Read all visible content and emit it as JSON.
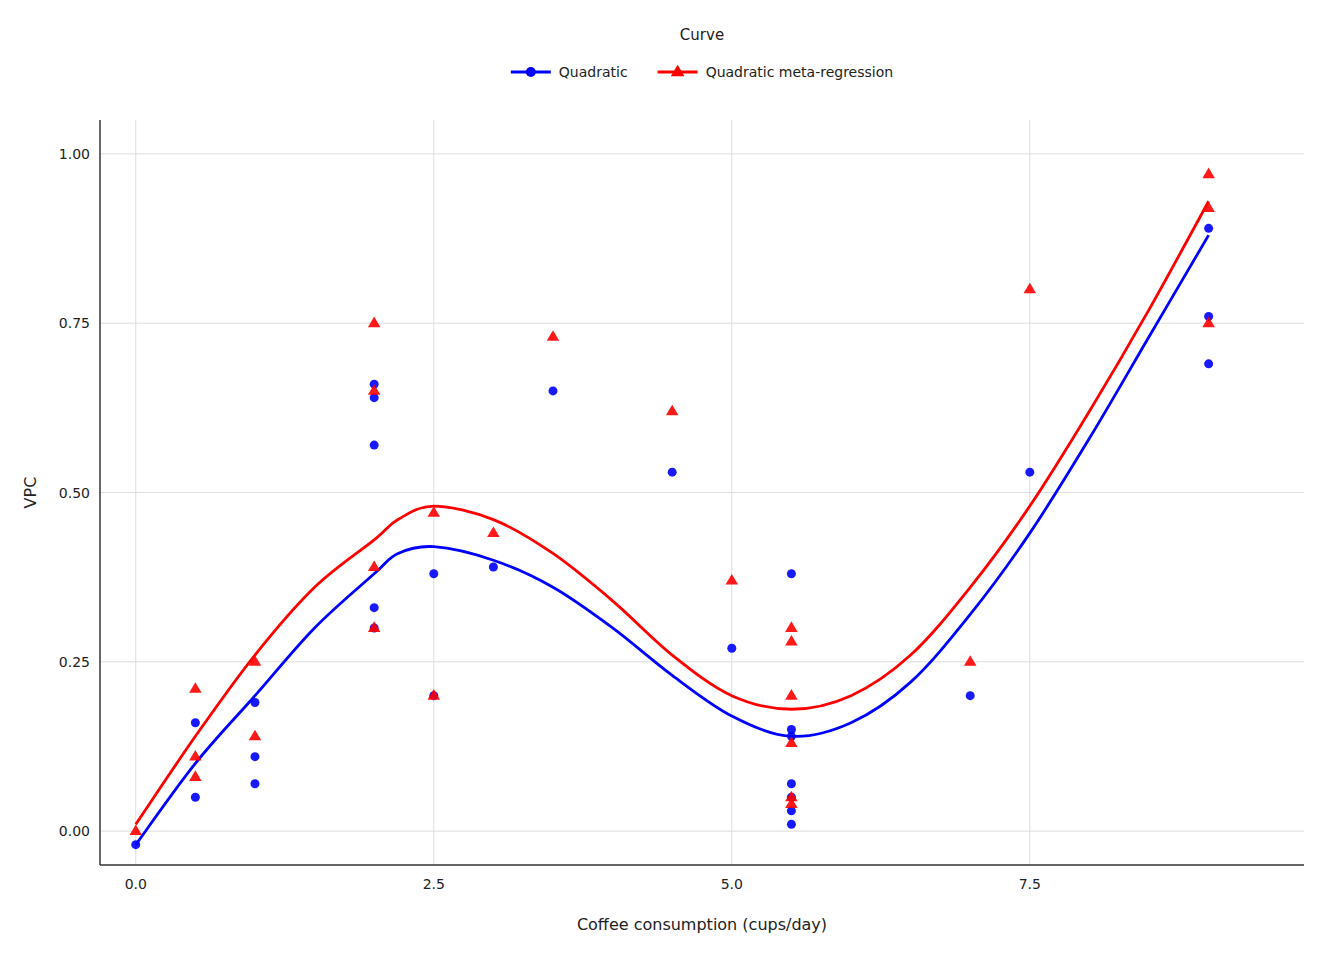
{
  "chart_data": {
    "type": "scatter",
    "x_label": "Coffee consumption (cups/day)",
    "y_label": "VPC",
    "legend_title": "Curve",
    "legend": "top",
    "grid": true,
    "xlim": [
      -0.3,
      9.8
    ],
    "ylim": [
      -0.05,
      1.05
    ],
    "xticks": [
      {
        "value": 0.0,
        "label": "0.0"
      },
      2.5,
      {
        "value": 5.0,
        "label": "5.0"
      },
      7.5
    ],
    "yticks": [
      {
        "value": 0.0,
        "label": "0.00"
      },
      0.25,
      {
        "value": 0.5,
        "label": "0.50"
      },
      0.75,
      {
        "value": 1.0,
        "label": "1.00"
      }
    ],
    "series": [
      {
        "name": "Quadratic",
        "type": "scatter",
        "marker": "circle",
        "color": "#0000FF",
        "x": [
          0.0,
          0.5,
          0.5,
          1.0,
          1.0,
          1.0,
          2.0,
          2.0,
          2.0,
          2.0,
          2.0,
          2.5,
          2.5,
          3.0,
          3.5,
          4.5,
          5.0,
          5.5,
          5.5,
          5.5,
          5.5,
          5.5,
          5.5,
          5.5,
          7.0,
          7.5,
          9.0,
          9.0,
          9.0
        ],
        "values": [
          -0.02,
          0.16,
          0.05,
          0.19,
          0.11,
          0.07,
          0.33,
          0.3,
          0.66,
          0.64,
          0.57,
          0.38,
          0.2,
          0.39,
          0.65,
          0.53,
          0.27,
          0.14,
          0.01,
          0.03,
          0.05,
          0.07,
          0.38,
          0.15,
          0.2,
          0.53,
          0.69,
          0.89,
          0.76
        ]
      },
      {
        "name": "Quadratic meta-regression",
        "type": "scatter",
        "marker": "triangle",
        "color": "#FF0000",
        "x": [
          0.0,
          0.5,
          0.5,
          0.5,
          1.0,
          1.0,
          2.0,
          2.0,
          2.0,
          2.0,
          2.5,
          2.5,
          3.0,
          3.5,
          4.5,
          5.0,
          5.5,
          5.5,
          5.5,
          5.5,
          5.5,
          5.5,
          7.0,
          7.5,
          9.0,
          9.0,
          9.0
        ],
        "values": [
          0.0,
          0.21,
          0.11,
          0.08,
          0.25,
          0.14,
          0.39,
          0.3,
          0.65,
          0.75,
          0.47,
          0.2,
          0.44,
          0.73,
          0.62,
          0.37,
          0.13,
          0.04,
          0.05,
          0.2,
          0.3,
          0.28,
          0.25,
          0.8,
          0.75,
          0.92,
          0.97
        ]
      },
      {
        "type": "line",
        "line_style": "solid",
        "color": "#0000FF",
        "x": [
          0.0,
          0.5,
          1.0,
          1.5,
          2.0,
          2.2,
          2.5,
          3.0,
          3.5,
          4.0,
          4.5,
          5.0,
          5.5,
          6.0,
          6.5,
          7.0,
          7.5,
          8.0,
          8.5,
          9.0
        ],
        "values": [
          -0.02,
          0.1,
          0.2,
          0.3,
          0.38,
          0.41,
          0.42,
          0.4,
          0.36,
          0.3,
          0.23,
          0.17,
          0.14,
          0.16,
          0.22,
          0.32,
          0.44,
          0.58,
          0.73,
          0.88
        ]
      },
      {
        "type": "line",
        "line_style": "solid",
        "color": "#FF0000",
        "x": [
          0.0,
          0.5,
          1.0,
          1.5,
          2.0,
          2.2,
          2.5,
          3.0,
          3.5,
          4.0,
          4.5,
          5.0,
          5.5,
          6.0,
          6.5,
          7.0,
          7.5,
          8.0,
          8.5,
          9.0
        ],
        "values": [
          0.01,
          0.14,
          0.26,
          0.36,
          0.43,
          0.46,
          0.48,
          0.46,
          0.41,
          0.34,
          0.26,
          0.2,
          0.18,
          0.2,
          0.26,
          0.36,
          0.48,
          0.62,
          0.77,
          0.93
        ]
      }
    ]
  }
}
